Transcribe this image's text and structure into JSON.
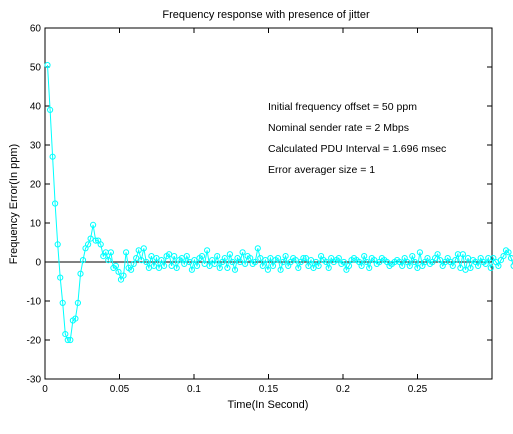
{
  "chart_data": {
    "type": "line",
    "title": "Frequency response with presence of jitter",
    "xlabel": "Time(In Second)",
    "ylabel": "Frequency Error(In ppm)",
    "xlim": [
      0,
      0.3
    ],
    "ylim": [
      -30,
      60
    ],
    "x_ticks": [
      "0",
      "0.05",
      "0.1",
      "0.15",
      "0.2",
      "0.25"
    ],
    "y_ticks": [
      "-30",
      "-20",
      "-10",
      "0",
      "10",
      "20",
      "30",
      "40",
      "50",
      "60"
    ],
    "grid": false,
    "zero_line": true,
    "series_color": "#00ffff",
    "marker": "circle",
    "annotations": [
      "Initial frequency offset = 50 ppm",
      "Nominal sender rate = 2 Mbps",
      "Calculated PDU Interval = 1.696 msec",
      "Error averager size = 1"
    ],
    "series": [
      {
        "x_start": 0.0017,
        "x_step": 0.0017,
        "values": [
          50.5,
          39.0,
          27.0,
          15.0,
          4.5,
          -4.0,
          -10.5,
          -18.5,
          -20.0,
          -20.0,
          -15.0,
          -14.5,
          -10.5,
          -3.0,
          0.5,
          3.5,
          4.5,
          6.0,
          9.5,
          5.5,
          5.5,
          4.5,
          1.5,
          2.5,
          0.5,
          2.5,
          -1.5,
          -1.0,
          -2.5,
          -4.5,
          -3.5,
          2.5,
          -1.5,
          -2.0,
          -0.5,
          1.0,
          3.0,
          0.5,
          3.5,
          0.0,
          -1.5,
          1.5,
          -1.0,
          1.0,
          -1.5,
          0.5,
          -1.0,
          1.5,
          2.0,
          -1.0,
          1.5,
          -1.5,
          0.5,
          1.0,
          -0.5,
          1.5,
          0.0,
          -2.0,
          0.5,
          -1.0,
          1.0,
          1.5,
          -0.5,
          3.0,
          -1.0,
          0.5,
          -0.5,
          1.5,
          -1.5,
          0.0,
          1.0,
          -1.5,
          2.0,
          0.0,
          -2.0,
          1.0,
          0.0,
          2.5,
          -0.5,
          1.5,
          1.0,
          -0.5,
          0.0,
          3.5,
          1.0,
          -1.0,
          0.5,
          -2.0,
          1.0,
          -1.0,
          0.5,
          1.0,
          -2.0,
          0.0,
          1.5,
          -1.0,
          0.0,
          1.0,
          0.5,
          -1.5,
          0.0,
          1.0,
          1.0,
          -1.0,
          0.5,
          -1.5,
          0.0,
          -1.0,
          1.5,
          0.5,
          0.0,
          -1.5,
          1.0,
          0.0,
          0.5,
          1.0,
          -0.5,
          0.0,
          -2.0,
          -1.0,
          0.5,
          1.0,
          0.5,
          0.0,
          -1.0,
          1.5,
          0.0,
          -1.5,
          1.0,
          0.5,
          -0.5,
          0.0,
          1.0,
          0.5,
          0.0,
          -1.0,
          -0.5,
          0.0,
          0.5,
          0.0,
          -1.0,
          1.0,
          0.0,
          -1.0,
          1.5,
          0.0,
          -1.5,
          2.5,
          -1.0,
          0.0,
          1.0,
          -0.5,
          0.0,
          1.0,
          2.0,
          0.5,
          -1.0,
          0.0,
          1.0,
          0.0,
          -1.0,
          0.5,
          2.0,
          -1.5,
          2.0,
          -2.0,
          1.0,
          -1.5,
          0.5,
          0.0,
          -1.0,
          1.0,
          0.0,
          -0.5,
          1.0,
          -1.5,
          1.0,
          0.0,
          -1.0,
          0.5,
          1.5,
          3.0,
          2.5,
          1.0,
          -1.0,
          0.0,
          2.0,
          -2.0,
          1.5,
          -1.5,
          0.0,
          -1.5,
          1.0,
          2.0,
          -1.0,
          0.0,
          1.0,
          0.5,
          -0.5,
          2.5,
          -1.0,
          0.0,
          1.0,
          -1.0,
          0.0,
          -1.5,
          1.0,
          0.0,
          -0.5,
          1.0,
          0.0,
          -1.0,
          1.5,
          0.0,
          -1.0,
          2.0,
          0.0,
          -1.5,
          1.0,
          -0.5,
          0.0,
          1.5,
          -1.0
        ]
      }
    ]
  }
}
